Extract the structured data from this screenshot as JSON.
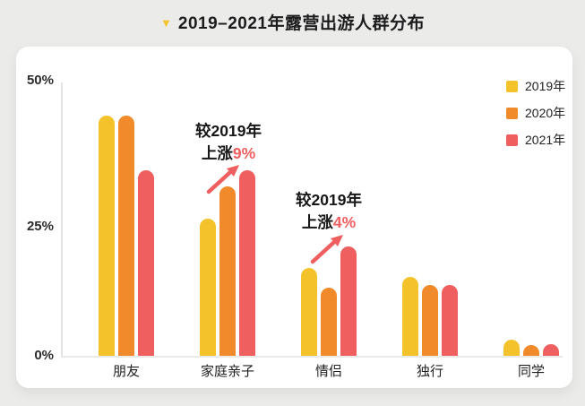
{
  "page": {
    "title_marker": "▼",
    "title": "2019–2021年露营出游人群分布",
    "background_color": "#EBEBE9"
  },
  "colors": {
    "series_2019": "#F4C32C",
    "series_2020": "#F08A2A",
    "series_2021": "#F05F5F",
    "annotation_highlight": "#F05F5F",
    "title_marker": "#F5C52C",
    "axis_line": "#E3E3E3"
  },
  "y_axis": {
    "ticks": {
      "top": "50%",
      "mid": "25%",
      "zero": "0%"
    }
  },
  "legend": [
    {
      "label": "2019年",
      "color": "#F4C32C"
    },
    {
      "label": "2020年",
      "color": "#F08A2A"
    },
    {
      "label": "2021年",
      "color": "#F05F5F"
    }
  ],
  "annotations": [
    {
      "line1": "较2019年",
      "line2_prefix": "上涨",
      "line2_value": "9%"
    },
    {
      "line1": "较2019年",
      "line2_prefix": "上涨",
      "line2_value": "4%"
    }
  ],
  "chart_data": {
    "type": "bar",
    "title": "2019–2021年露营出游人群分布",
    "categories": [
      "朋友",
      "家庭亲子",
      "情侣",
      "独行",
      "同学"
    ],
    "series": [
      {
        "name": "2019年",
        "color": "#F4C32C",
        "values": [
          44,
          25,
          16,
          14.5,
          3
        ]
      },
      {
        "name": "2020年",
        "color": "#F08A2A",
        "values": [
          44,
          31,
          12.5,
          13,
          2
        ]
      },
      {
        "name": "2021年",
        "color": "#F05F5F",
        "values": [
          34,
          34,
          20,
          13,
          2.2
        ]
      }
    ],
    "ylabel": "",
    "ylim": [
      0,
      50
    ],
    "y_ticks_percent": [
      0,
      25,
      50
    ],
    "grid": false,
    "legend_position": "top-right",
    "annotations": [
      {
        "target_category": "家庭亲子",
        "text": "较2019年上涨9%",
        "compare_series": "2019年→2021年"
      },
      {
        "target_category": "情侣",
        "text": "较2019年上涨4%",
        "compare_series": "2019年→2021年"
      }
    ]
  }
}
